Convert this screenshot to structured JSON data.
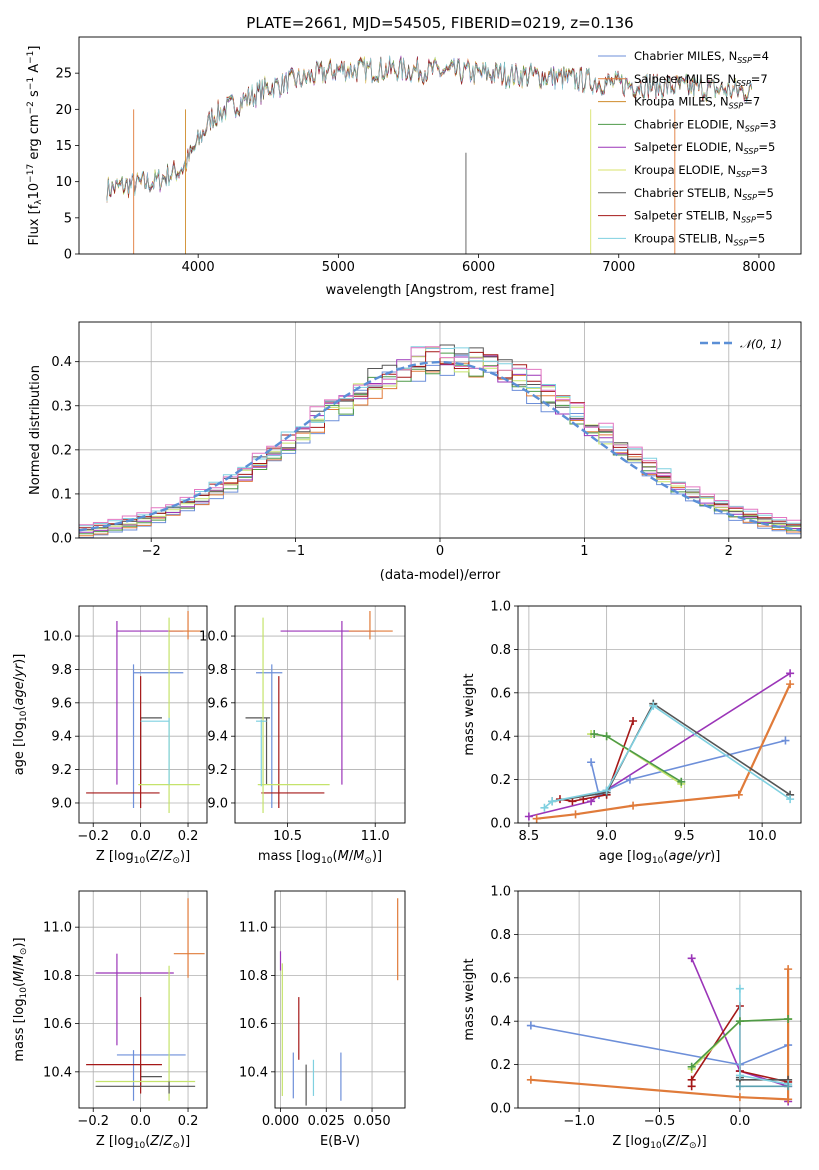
{
  "chart_data": [
    {
      "id": "spectrum",
      "type": "line",
      "title": "PLATE=2661, MJD=54505, FIBERID=0219, z=0.136",
      "xlabel": "wavelength [Angstrom, rest frame]",
      "ylabel": "Flux [f_λ10^-17 erg cm^-2 s^-1 A^-1]",
      "xlim": [
        3150,
        8300
      ],
      "ylim": [
        0,
        30
      ],
      "xticks": [
        4000,
        5000,
        6000,
        7000,
        8000
      ],
      "yticks": [
        0,
        5,
        10,
        15,
        20,
        25
      ],
      "legend_position": "top-right",
      "continuum": {
        "x": [
          3350,
          3500,
          3700,
          3900,
          4000,
          4100,
          4300,
          4500,
          4800,
          5000,
          5500,
          6000,
          6500,
          7000,
          7500,
          7950
        ],
        "y": [
          9,
          9.5,
          10,
          12,
          15.5,
          19,
          21,
          23,
          24.5,
          25.5,
          25.5,
          25,
          24.5,
          23.5,
          23,
          22.5
        ]
      },
      "noise_amplitude": 1.6,
      "series": [
        {
          "name": "Chabrier MILES, N_SSP=4",
          "color": "#6d8fd9"
        },
        {
          "name": "Salpeter MILES, N_SSP=7",
          "color": "#e07b3a"
        },
        {
          "name": "Kroupa MILES, N_SSP=7",
          "color": "#cf8c2b"
        },
        {
          "name": "Chabrier ELODIE, N_SSP=3",
          "color": "#4e9a48"
        },
        {
          "name": "Salpeter ELODIE, N_SSP=5",
          "color": "#9b35b8"
        },
        {
          "name": "Kroupa ELODIE, N_SSP=3",
          "color": "#d9e36b"
        },
        {
          "name": "Chabrier STELIB, N_SSP=5",
          "color": "#555555"
        },
        {
          "name": "Salpeter STELIB, N_SSP=5",
          "color": "#a51818"
        },
        {
          "name": "Kroupa STELIB, N_SSP=5",
          "color": "#7fd0e0"
        }
      ]
    },
    {
      "id": "residuals",
      "type": "line",
      "xlabel": "(data-model)/error",
      "ylabel": "Normed distribution",
      "xlim": [
        -2.5,
        2.5
      ],
      "ylim": [
        0,
        0.49
      ],
      "xticks": [
        -2,
        -1,
        0,
        1,
        2
      ],
      "yticks": [
        0.0,
        0.1,
        0.2,
        0.3,
        0.4
      ],
      "grid": true,
      "legend": [
        {
          "name": "N(0, 1)",
          "color": "#5b8fd6",
          "style": "dashed"
        }
      ],
      "legend_position": "top-right",
      "hist_colors": [
        "#6d8fd9",
        "#e07b3a",
        "#4e9a48",
        "#9b35b8",
        "#c5e36b",
        "#555555",
        "#a51818",
        "#7fd0e0",
        "#e377c2"
      ]
    },
    {
      "id": "age-vs-Z",
      "type": "scatter",
      "xlabel": "Z [log10(Z/Z☉)]",
      "ylabel": "age [log10(age/yr)]",
      "xlim": [
        -0.26,
        0.28
      ],
      "ylim": [
        8.88,
        10.18
      ],
      "xticks": [
        -0.2,
        0.0,
        0.2
      ],
      "yticks": [
        9.0,
        9.2,
        9.4,
        9.6,
        9.8,
        10.0
      ],
      "grid": true,
      "crosses": [
        {
          "color": "#9b35b8",
          "x": -0.1,
          "y": 10.03,
          "xr": [
            -0.1,
            0.18
          ],
          "yr": [
            9.11,
            10.09
          ]
        },
        {
          "color": "#6d8fd9",
          "x": -0.03,
          "y": 9.78,
          "xr": [
            -0.03,
            0.18
          ],
          "yr": [
            8.97,
            9.83
          ]
        },
        {
          "color": "#555555",
          "x": 0.0,
          "y": 9.51,
          "xr": [
            0.0,
            0.09
          ],
          "yr": [
            9.11,
            9.51
          ]
        },
        {
          "color": "#a51818",
          "x": 0.0,
          "y": 9.06,
          "xr": [
            -0.23,
            0.08
          ],
          "yr": [
            8.97,
            9.76
          ]
        },
        {
          "color": "#c5e36b",
          "x": 0.12,
          "y": 9.11,
          "xr": [
            -0.01,
            0.25
          ],
          "yr": [
            8.94,
            10.11
          ]
        },
        {
          "color": "#e07b3a",
          "x": 0.2,
          "y": 10.03,
          "xr": [
            0.12,
            0.26
          ],
          "yr": [
            9.98,
            10.15
          ]
        },
        {
          "color": "#7fd0e0",
          "x": 0.12,
          "y": 9.49,
          "xr": [
            0.0,
            0.12
          ],
          "yr": [
            9.11,
            9.51
          ]
        }
      ]
    },
    {
      "id": "age-vs-mass",
      "type": "scatter",
      "xlabel": "mass [log10(M/M☉)]",
      "ylabel": "",
      "xlim": [
        10.2,
        11.17
      ],
      "ylim": [
        8.88,
        10.18
      ],
      "xticks": [
        10.5,
        11.0
      ],
      "yticks": [
        9.0,
        9.2,
        9.4,
        9.6,
        9.8,
        10.0
      ],
      "grid": true,
      "crosses": [
        {
          "color": "#9b35b8",
          "x": 10.81,
          "y": 10.03,
          "xr": [
            10.46,
            11.0
          ],
          "yr": [
            9.11,
            10.09
          ]
        },
        {
          "color": "#6d8fd9",
          "x": 10.41,
          "y": 9.78,
          "xr": [
            10.32,
            10.47
          ],
          "yr": [
            8.97,
            9.83
          ]
        },
        {
          "color": "#555555",
          "x": 10.38,
          "y": 9.51,
          "xr": [
            10.26,
            10.4
          ],
          "yr": [
            9.11,
            9.51
          ]
        },
        {
          "color": "#a51818",
          "x": 10.45,
          "y": 9.06,
          "xr": [
            10.35,
            10.71
          ],
          "yr": [
            8.97,
            9.76
          ]
        },
        {
          "color": "#c5e36b",
          "x": 10.36,
          "y": 9.11,
          "xr": [
            10.33,
            10.74
          ],
          "yr": [
            8.94,
            10.11
          ]
        },
        {
          "color": "#e07b3a",
          "x": 10.97,
          "y": 10.03,
          "xr": [
            10.85,
            11.1
          ],
          "yr": [
            9.98,
            10.15
          ]
        },
        {
          "color": "#7fd0e0",
          "x": 10.35,
          "y": 9.49,
          "xr": [
            10.32,
            10.38
          ],
          "yr": [
            9.1,
            9.5
          ]
        }
      ]
    },
    {
      "id": "weight-vs-age",
      "type": "line",
      "xlabel": "age [log10(age/yr)]",
      "ylabel": "mass weight",
      "xlim": [
        8.43,
        10.25
      ],
      "ylim": [
        0,
        1.0
      ],
      "xticks": [
        8.5,
        9.0,
        9.5,
        10.0
      ],
      "yticks": [
        0.0,
        0.2,
        0.4,
        0.6,
        0.8,
        1.0
      ],
      "grid": true,
      "series": [
        {
          "color": "#9b35b8",
          "x": [
            8.5,
            8.9,
            8.95,
            10.18
          ],
          "y": [
            0.03,
            0.1,
            0.13,
            0.69
          ]
        },
        {
          "color": "#6d8fd9",
          "x": [
            8.9,
            8.95,
            9.0,
            9.15,
            10.15
          ],
          "y": [
            0.28,
            0.13,
            0.15,
            0.2,
            0.38
          ]
        },
        {
          "color": "#e07b3a",
          "x": [
            8.55,
            8.8,
            9.17,
            9.85,
            10.18
          ],
          "y": [
            0.02,
            0.04,
            0.08,
            0.13,
            0.64
          ]
        },
        {
          "color": "#a51818",
          "x": [
            8.7,
            8.78,
            8.85,
            9.0,
            9.17
          ],
          "y": [
            0.11,
            0.1,
            0.11,
            0.13,
            0.47
          ]
        },
        {
          "color": "#c5e36b",
          "x": [
            8.9,
            9.0,
            9.48
          ],
          "y": [
            0.41,
            0.4,
            0.18
          ]
        },
        {
          "color": "#555555",
          "x": [
            8.65,
            9.0,
            9.3,
            10.18
          ],
          "y": [
            0.1,
            0.14,
            0.55,
            0.13
          ]
        },
        {
          "color": "#4e9a48",
          "x": [
            8.92,
            9.0,
            9.48
          ],
          "y": [
            0.41,
            0.4,
            0.19
          ]
        },
        {
          "color": "#7fd0e0",
          "x": [
            8.6,
            8.65,
            9.0,
            9.3,
            10.18
          ],
          "y": [
            0.07,
            0.1,
            0.15,
            0.54,
            0.11
          ]
        }
      ]
    },
    {
      "id": "mass-vs-Z",
      "type": "scatter",
      "xlabel": "Z [log10(Z/Z☉)]",
      "ylabel": "mass [log10(M/M☉)]",
      "xlim": [
        -0.26,
        0.28
      ],
      "ylim": [
        10.25,
        11.15
      ],
      "xticks": [
        -0.2,
        0.0,
        0.2
      ],
      "yticks": [
        10.4,
        10.6,
        10.8,
        11.0
      ],
      "grid": true,
      "crosses": [
        {
          "color": "#9b35b8",
          "x": -0.1,
          "y": 10.81,
          "xr": [
            -0.19,
            0.14
          ],
          "yr": [
            10.51,
            10.89
          ]
        },
        {
          "color": "#6d8fd9",
          "x": -0.03,
          "y": 10.47,
          "xr": [
            -0.1,
            0.19
          ],
          "yr": [
            10.28,
            10.49
          ]
        },
        {
          "color": "#555555",
          "x": 0.0,
          "y": 10.38,
          "xr": [
            0.0,
            0.09
          ],
          "yr": [
            10.34,
            10.43
          ]
        },
        {
          "color": "#a51818",
          "x": 0.0,
          "y": 10.43,
          "xr": [
            -0.23,
            0.09
          ],
          "yr": [
            10.31,
            10.71
          ]
        },
        {
          "color": "#c5e36b",
          "x": 0.12,
          "y": 10.36,
          "xr": [
            -0.19,
            0.23
          ],
          "yr": [
            10.28,
            10.84
          ]
        },
        {
          "color": "#e07b3a",
          "x": 0.2,
          "y": 10.89,
          "xr": [
            0.14,
            0.27
          ],
          "yr": [
            10.79,
            11.12
          ]
        },
        {
          "color": "#555555",
          "x": 0.12,
          "y": 10.34,
          "xr": [
            -0.19,
            0.23
          ],
          "yr": [
            10.31,
            10.36
          ]
        }
      ]
    },
    {
      "id": "mass-vs-ebv",
      "type": "scatter",
      "xlabel": "E(B-V)",
      "ylabel": "",
      "xlim": [
        -0.003,
        0.068
      ],
      "ylim": [
        10.25,
        11.15
      ],
      "xticks": [
        0.0,
        0.025,
        0.05
      ],
      "yticks": [
        10.4,
        10.6,
        10.8,
        11.0
      ],
      "grid": true,
      "crosses": [
        {
          "color": "#9b35b8",
          "x": 0.0,
          "y": 10.85,
          "xr": [
            0.0,
            0.0
          ],
          "yr": [
            10.82,
            10.9
          ]
        },
        {
          "color": "#c5e36b",
          "x": 0.001,
          "y": 10.6,
          "xr": [
            0.001,
            0.001
          ],
          "yr": [
            10.3,
            10.85
          ]
        },
        {
          "color": "#6d8fd9",
          "x": 0.007,
          "y": 10.38,
          "xr": [
            0.007,
            0.007
          ],
          "yr": [
            10.29,
            10.48
          ]
        },
        {
          "color": "#a51818",
          "x": 0.01,
          "y": 10.55,
          "xr": [
            0.01,
            0.01
          ],
          "yr": [
            10.45,
            10.71
          ]
        },
        {
          "color": "#555555",
          "x": 0.014,
          "y": 10.34,
          "xr": [
            0.014,
            0.014
          ],
          "yr": [
            10.26,
            10.43
          ]
        },
        {
          "color": "#7fd0e0",
          "x": 0.018,
          "y": 10.38,
          "xr": [
            0.018,
            0.018
          ],
          "yr": [
            10.3,
            10.45
          ]
        },
        {
          "color": "#6d8fd9",
          "x": 0.033,
          "y": 10.38,
          "xr": [
            0.033,
            0.033
          ],
          "yr": [
            10.28,
            10.48
          ]
        },
        {
          "color": "#e07b3a",
          "x": 0.064,
          "y": 10.95,
          "xr": [
            0.064,
            0.064
          ],
          "yr": [
            10.78,
            11.12
          ]
        }
      ]
    },
    {
      "id": "weight-vs-Z",
      "type": "line",
      "xlabel": "Z [log10(Z/Z☉)]",
      "ylabel": "mass weight",
      "xlim": [
        -1.38,
        0.38
      ],
      "ylim": [
        0,
        1.0
      ],
      "xticks": [
        -1.0,
        -0.5,
        0.0
      ],
      "yticks": [
        0.0,
        0.2,
        0.4,
        0.6,
        0.8,
        1.0
      ],
      "grid": true,
      "series": [
        {
          "color": "#9b35b8",
          "x": [
            -0.3,
            0.0,
            0.3,
            0.3
          ],
          "y": [
            0.69,
            0.17,
            0.1,
            0.03
          ]
        },
        {
          "color": "#6d8fd9",
          "x": [
            -1.3,
            0.0,
            0.3
          ],
          "y": [
            0.38,
            0.2,
            0.29
          ]
        },
        {
          "color": "#e07b3a",
          "x": [
            -1.3,
            0.0,
            0.3,
            0.3
          ],
          "y": [
            0.13,
            0.05,
            0.04,
            0.64
          ]
        },
        {
          "color": "#a51818",
          "x": [
            -0.3,
            -0.3,
            0.0,
            0.0,
            0.3
          ],
          "y": [
            0.1,
            0.13,
            0.47,
            0.17,
            0.12
          ]
        },
        {
          "color": "#c5e36b",
          "x": [
            -0.3,
            0.0,
            0.3
          ],
          "y": [
            0.18,
            0.4,
            0.41
          ]
        },
        {
          "color": "#555555",
          "x": [
            0.0,
            0.0,
            0.3
          ],
          "y": [
            0.14,
            0.13,
            0.13
          ]
        },
        {
          "color": "#7fd0e0",
          "x": [
            0.0,
            0.0,
            0.3
          ],
          "y": [
            0.55,
            0.15,
            0.11
          ]
        },
        {
          "color": "#4e9a48",
          "x": [
            -0.3,
            0.0,
            0.3
          ],
          "y": [
            0.19,
            0.4,
            0.41
          ]
        },
        {
          "color": "#5aa0b0",
          "x": [
            0.0,
            0.3
          ],
          "y": [
            0.1,
            0.1
          ]
        }
      ]
    }
  ]
}
